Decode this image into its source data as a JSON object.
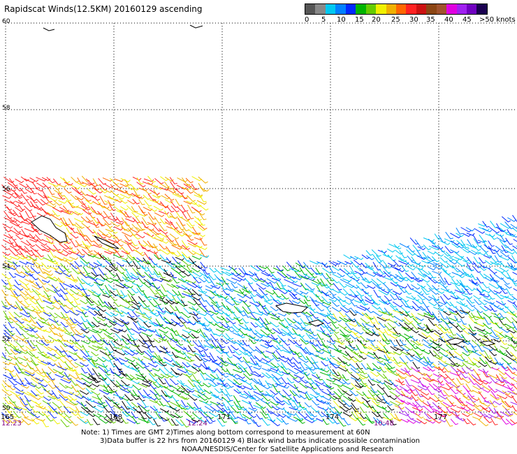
{
  "title": "Rapidscat Winds(12.5KM) 20160129 ascending",
  "legend": {
    "colors": [
      "#555555",
      "#888888",
      "#00c8f0",
      "#0080ff",
      "#0028ff",
      "#00b400",
      "#66cc00",
      "#f0f000",
      "#f0b000",
      "#ff6600",
      "#ff2222",
      "#cc1111",
      "#8b4513",
      "#a0522d",
      "#e000e0",
      "#a020f0",
      "#7000c0",
      "#1a0050"
    ],
    "labels": [
      "0",
      "5",
      "10",
      "15",
      "20",
      "25",
      "30",
      "35",
      "40",
      "45",
      ">50 knots"
    ]
  },
  "lat_labels": [
    "60",
    "58",
    "56",
    "54",
    "52",
    "50"
  ],
  "lon_labels": [
    "165",
    "168",
    "171",
    "174",
    "177"
  ],
  "time_labels": [
    "12:23",
    "12:24",
    "10:48"
  ],
  "notes": [
    "Note: 1) Times are GMT 2)Times along bottom correspond to measurement at 60N",
    "3)Data buffer is 22 hrs from 20160129 4) Black wind barbs indicate possible contamination",
    "NOAA/NESDIS/Center for Satellite Applications and Research"
  ]
}
